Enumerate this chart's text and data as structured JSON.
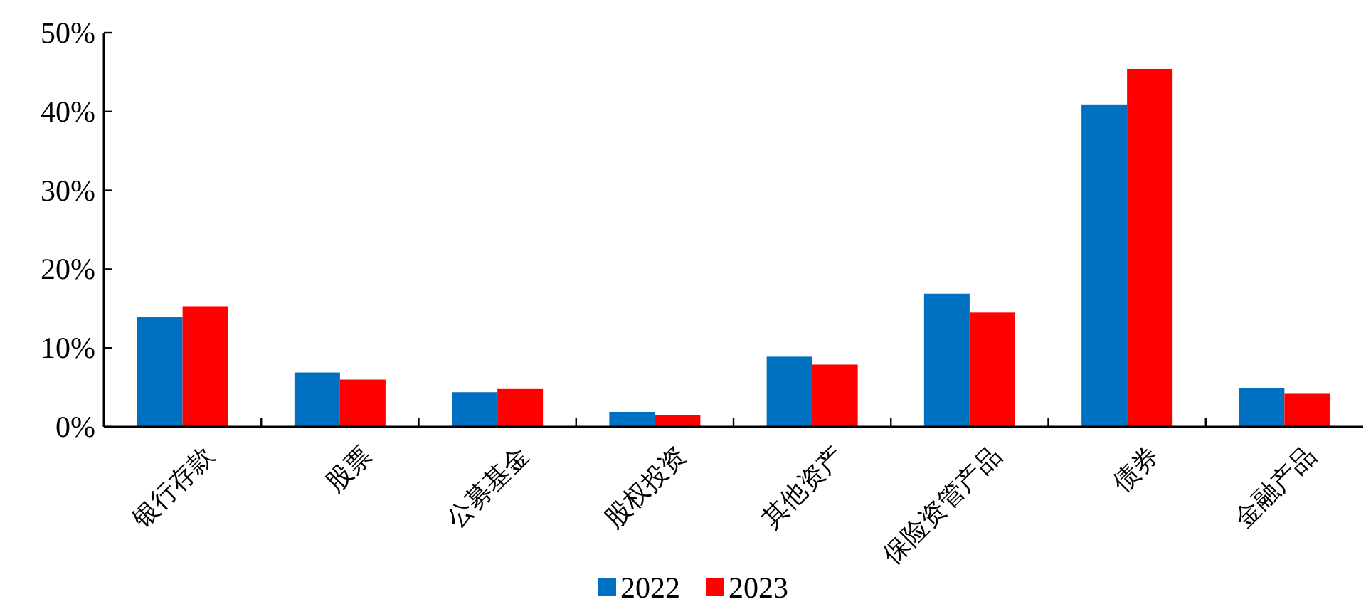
{
  "chart_data": {
    "type": "bar",
    "categories": [
      "银行存款",
      "股票",
      "公募基金",
      "股权投资",
      "其他资产",
      "保险资管产品",
      "债券",
      "金融产品"
    ],
    "series": [
      {
        "name": "2022",
        "color": "#0070c0",
        "values": [
          13.9,
          6.9,
          4.4,
          1.9,
          8.9,
          16.9,
          40.9,
          4.9
        ]
      },
      {
        "name": "2023",
        "color": "#ff0000",
        "values": [
          15.3,
          6.0,
          4.8,
          1.5,
          7.9,
          14.5,
          45.4,
          4.2
        ]
      }
    ],
    "ylim": [
      0,
      50
    ],
    "yticks": [
      {
        "value": 0,
        "label": "0%"
      },
      {
        "value": 10,
        "label": "10%"
      },
      {
        "value": 20,
        "label": "20%"
      },
      {
        "value": 30,
        "label": "30%"
      },
      {
        "value": 40,
        "label": "40%"
      },
      {
        "value": 50,
        "label": "50%"
      }
    ],
    "grid": false,
    "legend": "bottom"
  }
}
